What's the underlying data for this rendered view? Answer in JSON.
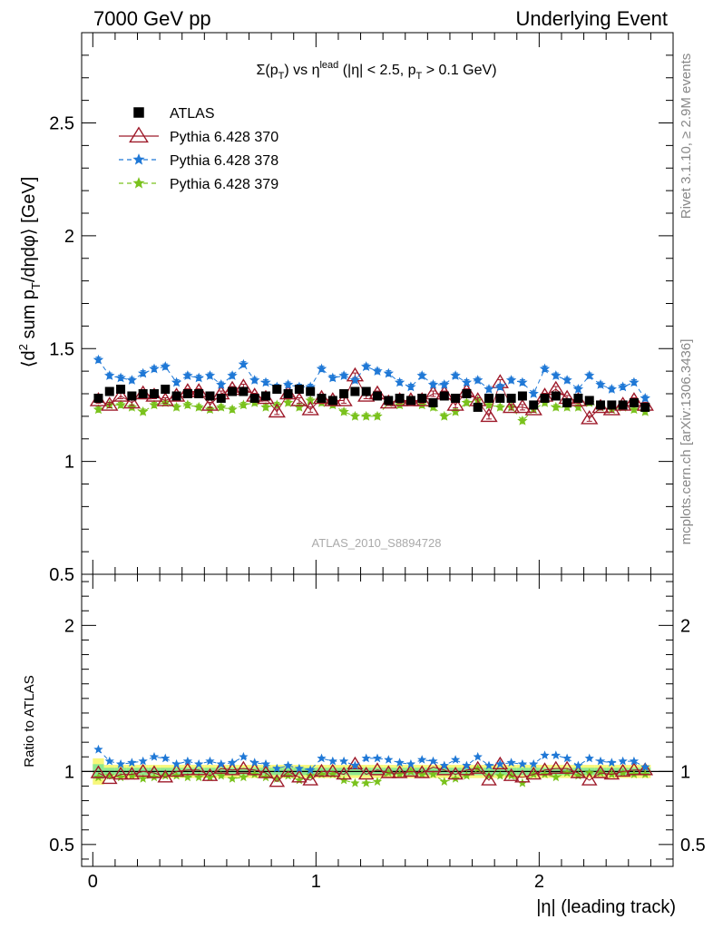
{
  "header": {
    "left": "7000 GeV pp",
    "right": "Underlying Event"
  },
  "side_texts": {
    "rivet": "Rivet 3.1.10, ≥ 2.9M events",
    "mcplots": "mcplots.cern.ch [arXiv:1306.3436]"
  },
  "main_plot": {
    "title_parts": {
      "sigma": "Σ(p",
      "t_sub": "T",
      "vs": ") vs η",
      "lead": "lead",
      "rest": " (|η| < 2.5, p",
      "t_sub2": "T",
      "tail": " > 0.1 GeV)"
    },
    "ylabel_parts": {
      "open": "⟨d",
      "two": "2",
      "mid": " sum p",
      "t": "T",
      "end": "/dηdφ⟩ [GeV]"
    },
    "watermark": "ATLAS_2010_S8894728",
    "y_ticks": [
      "0.5",
      "1",
      "1.5",
      "2",
      "2.5"
    ]
  },
  "ratio_plot": {
    "ylabel": "Ratio to ATLAS",
    "y_ticks": [
      "0.5",
      "1",
      "2"
    ]
  },
  "xaxis": {
    "label": "|η| (leading track)",
    "ticks": [
      "0",
      "1",
      "2"
    ]
  },
  "colors": {
    "atlas": "#000000",
    "p370": "#9e1a2a",
    "p378": "#1f78d6",
    "p379": "#7ac21d",
    "band_inner": "#8ee88e",
    "band_outer": "#f7f77a"
  },
  "chart_data": {
    "type": "scatter",
    "xlabel": "|η| (leading track)",
    "ylabel": "⟨d2 sum pT/dηdφ⟩ [GeV]",
    "xlim": [
      -0.05,
      2.6
    ],
    "ylim": [
      0.5,
      2.9
    ],
    "ratio_ylim": [
      0.35,
      2.35
    ],
    "ratio_ylabel": "Ratio to ATLAS",
    "legend_position": "top-left",
    "x": [
      0.025,
      0.075,
      0.125,
      0.175,
      0.225,
      0.275,
      0.325,
      0.375,
      0.425,
      0.475,
      0.525,
      0.575,
      0.625,
      0.675,
      0.725,
      0.775,
      0.825,
      0.875,
      0.925,
      0.975,
      1.025,
      1.075,
      1.125,
      1.175,
      1.225,
      1.275,
      1.325,
      1.375,
      1.425,
      1.475,
      1.525,
      1.575,
      1.625,
      1.675,
      1.725,
      1.775,
      1.825,
      1.875,
      1.925,
      1.975,
      2.025,
      2.075,
      2.125,
      2.175,
      2.225,
      2.275,
      2.325,
      2.375,
      2.425,
      2.475
    ],
    "series": [
      {
        "name": "ATLAS",
        "marker": "square",
        "values": [
          1.28,
          1.31,
          1.32,
          1.29,
          1.3,
          1.3,
          1.32,
          1.29,
          1.3,
          1.3,
          1.29,
          1.28,
          1.31,
          1.31,
          1.28,
          1.29,
          1.32,
          1.3,
          1.32,
          1.31,
          1.28,
          1.27,
          1.3,
          1.31,
          1.31,
          1.29,
          1.27,
          1.28,
          1.27,
          1.28,
          1.26,
          1.29,
          1.28,
          1.3,
          1.24,
          1.28,
          1.28,
          1.28,
          1.29,
          1.25,
          1.28,
          1.29,
          1.26,
          1.28,
          1.27,
          1.25,
          1.25,
          1.25,
          1.26,
          1.24
        ],
        "ratio": [
          1,
          1,
          1,
          1,
          1,
          1,
          1,
          1,
          1,
          1,
          1,
          1,
          1,
          1,
          1,
          1,
          1,
          1,
          1,
          1,
          1,
          1,
          1,
          1,
          1,
          1,
          1,
          1,
          1,
          1,
          1,
          1,
          1,
          1,
          1,
          1,
          1,
          1,
          1,
          1,
          1,
          1,
          1,
          1,
          1,
          1,
          1,
          1,
          1,
          1
        ]
      },
      {
        "name": "Pythia 6.428 370",
        "marker": "open-triangle",
        "line": "solid",
        "values": [
          1.27,
          1.25,
          1.29,
          1.26,
          1.3,
          1.29,
          1.27,
          1.29,
          1.31,
          1.31,
          1.25,
          1.3,
          1.32,
          1.33,
          1.29,
          1.28,
          1.22,
          1.3,
          1.27,
          1.23,
          1.28,
          1.27,
          1.27,
          1.38,
          1.29,
          1.3,
          1.26,
          1.27,
          1.27,
          1.27,
          1.3,
          1.3,
          1.25,
          1.31,
          1.27,
          1.2,
          1.35,
          1.24,
          1.24,
          1.23,
          1.29,
          1.32,
          1.28,
          1.27,
          1.19,
          1.24,
          1.23,
          1.25,
          1.27,
          1.25
        ],
        "ratio": [
          0.99,
          0.95,
          0.98,
          0.98,
          1.0,
          0.99,
          0.96,
          1.0,
          1.01,
          1.01,
          0.97,
          1.02,
          1.01,
          1.02,
          1.01,
          0.99,
          0.93,
          1.0,
          0.96,
          0.94,
          1.0,
          1.0,
          0.98,
          1.05,
          0.98,
          1.01,
          0.99,
          0.99,
          1.0,
          0.99,
          1.03,
          1.01,
          0.98,
          1.01,
          1.02,
          0.94,
          1.05,
          0.97,
          0.96,
          0.98,
          1.01,
          1.02,
          1.02,
          0.99,
          0.94,
          0.99,
          0.98,
          1.0,
          1.01,
          1.01
        ]
      },
      {
        "name": "Pythia 6.428 378",
        "marker": "star",
        "line": "dashed",
        "values": [
          1.45,
          1.38,
          1.37,
          1.36,
          1.39,
          1.41,
          1.42,
          1.35,
          1.38,
          1.37,
          1.38,
          1.34,
          1.38,
          1.43,
          1.36,
          1.35,
          1.33,
          1.34,
          1.33,
          1.33,
          1.41,
          1.37,
          1.38,
          1.36,
          1.42,
          1.4,
          1.39,
          1.35,
          1.33,
          1.38,
          1.34,
          1.34,
          1.38,
          1.35,
          1.36,
          1.32,
          1.33,
          1.36,
          1.35,
          1.3,
          1.41,
          1.38,
          1.36,
          1.32,
          1.38,
          1.34,
          1.32,
          1.33,
          1.35,
          1.28
        ],
        "ratio": [
          1.15,
          1.07,
          1.05,
          1.06,
          1.07,
          1.1,
          1.09,
          1.05,
          1.07,
          1.05,
          1.07,
          1.05,
          1.06,
          1.1,
          1.06,
          1.05,
          1.02,
          1.04,
          1.02,
          1.01,
          1.09,
          1.07,
          1.07,
          1.04,
          1.09,
          1.09,
          1.08,
          1.06,
          1.05,
          1.08,
          1.07,
          1.04,
          1.08,
          1.04,
          1.1,
          1.04,
          1.05,
          1.06,
          1.05,
          1.05,
          1.11,
          1.11,
          1.09,
          1.04,
          1.09,
          1.07,
          1.06,
          1.07,
          1.07,
          1.03
        ]
      },
      {
        "name": "Pythia 6.428 379",
        "marker": "star",
        "line": "dashed",
        "values": [
          1.23,
          1.25,
          1.25,
          1.24,
          1.22,
          1.25,
          1.26,
          1.24,
          1.25,
          1.24,
          1.23,
          1.24,
          1.23,
          1.25,
          1.26,
          1.24,
          1.25,
          1.26,
          1.24,
          1.27,
          1.26,
          1.25,
          1.22,
          1.2,
          1.2,
          1.2,
          1.26,
          1.25,
          1.27,
          1.25,
          1.24,
          1.2,
          1.22,
          1.26,
          1.27,
          1.25,
          1.24,
          1.24,
          1.18,
          1.23,
          1.26,
          1.24,
          1.24,
          1.24,
          1.26,
          1.24,
          1.23,
          1.24,
          1.23,
          1.22
        ],
        "ratio": [
          0.96,
          0.97,
          0.96,
          0.97,
          0.95,
          0.96,
          0.97,
          0.97,
          0.96,
          0.96,
          0.96,
          0.97,
          0.95,
          0.96,
          0.98,
          0.96,
          0.95,
          0.97,
          0.94,
          0.97,
          0.98,
          0.98,
          0.94,
          0.92,
          0.92,
          0.93,
          0.99,
          0.98,
          1.0,
          0.98,
          0.98,
          0.93,
          0.95,
          0.97,
          1.02,
          0.97,
          0.97,
          0.97,
          0.92,
          0.98,
          0.98,
          0.96,
          0.99,
          0.97,
          0.99,
          0.99,
          0.98,
          0.99,
          0.98,
          0.98
        ]
      }
    ]
  }
}
